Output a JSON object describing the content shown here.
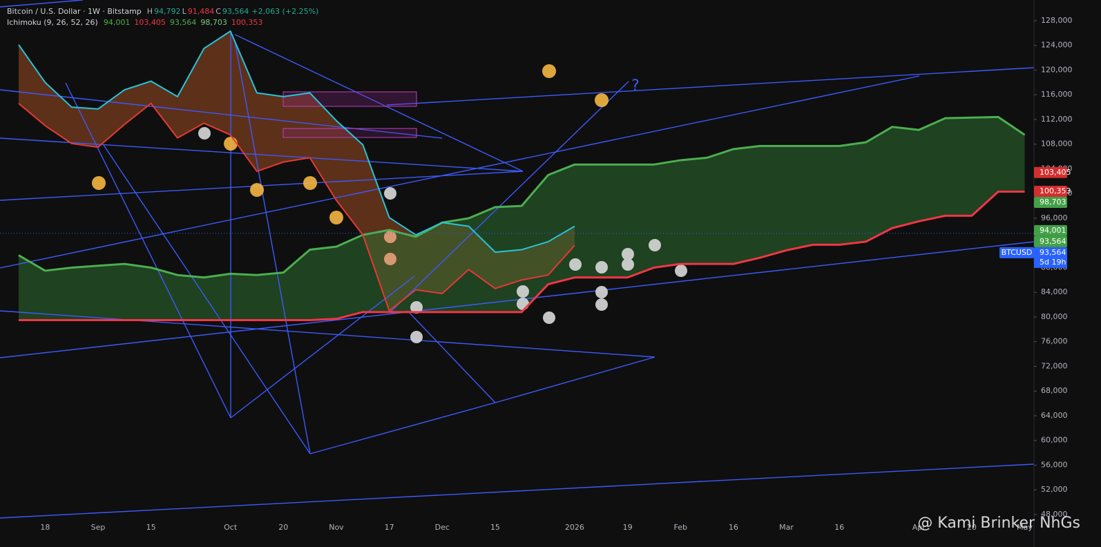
{
  "chart_data": {
    "type": "line",
    "header": {
      "symbol": "Bitcoin / U.S. Dollar · 1W · Bitstamp",
      "ohlc": [
        {
          "key": "H",
          "value": "94,792",
          "color": "#22ab94"
        },
        {
          "key": "L",
          "value": "91,484",
          "color": "#f23645"
        },
        {
          "key": "C",
          "value": "93,564",
          "color": "#22ab94"
        }
      ],
      "change": "+2,063 (+2.25%)",
      "indicator": "Ichimoku (9, 26, 52, 26)",
      "indicator_values": [
        {
          "text": "94,001",
          "color": "#4caf50"
        },
        {
          "text": "103,405",
          "color": "#f23645"
        },
        {
          "text": "93,564",
          "color": "#4caf50"
        },
        {
          "text": "98,703",
          "color": "#81c784"
        },
        {
          "text": "100,353",
          "color": "#f23645"
        }
      ]
    },
    "categories": [
      null,
      "18",
      null,
      "Sep",
      null,
      "15",
      null,
      null,
      "Oct",
      null,
      "20",
      null,
      "Nov",
      null,
      "17",
      null,
      "Dec",
      null,
      "15",
      null,
      null,
      "2026",
      null,
      "19",
      null,
      "Feb",
      null,
      "16",
      null,
      "Mar",
      null,
      "16",
      null,
      null,
      "Apr",
      null,
      "20",
      null,
      "May"
    ],
    "series": [
      {
        "color": "#4caf50",
        "values": [
          90000,
          87500,
          88000,
          88300,
          88600,
          88000,
          86800,
          86400,
          87000,
          86800,
          87200,
          90900,
          91400,
          93300,
          94100,
          93000,
          95300,
          96000,
          97800,
          98000,
          103000,
          104700,
          104700,
          104700,
          104700,
          105400,
          105800,
          107200,
          107700,
          107700,
          107700,
          107700,
          108300,
          110800,
          110300,
          112200,
          112300,
          112400,
          109500
        ]
      },
      {
        "color": "#f23645",
        "values": [
          79500,
          79500,
          79500,
          79500,
          79500,
          79500,
          79500,
          79500,
          79500,
          79500,
          79500,
          79500,
          79700,
          80800,
          80800,
          80800,
          80800,
          80800,
          80800,
          80800,
          85300,
          86400,
          86400,
          86400,
          88000,
          88600,
          88600,
          88600,
          89600,
          90800,
          91700,
          91700,
          92200,
          94400,
          95500,
          96400,
          96400,
          100300,
          100300
        ]
      },
      {
        "color": "#26c6da",
        "values": [
          124100,
          118000,
          114000,
          113700,
          116800,
          118200,
          115700,
          123500,
          126300,
          116300,
          115700,
          116300,
          111800,
          107900,
          96100,
          93300,
          95300,
          94700,
          90500,
          90900,
          92200,
          94700,
          null,
          null,
          null,
          null,
          null,
          null,
          null,
          null,
          null,
          null,
          null,
          null,
          null,
          null,
          null,
          null,
          null
        ]
      },
      {
        "color": "#e53935",
        "values": [
          114600,
          111000,
          108100,
          107500,
          111200,
          114600,
          109000,
          111400,
          109500,
          103600,
          105100,
          105800,
          98900,
          93300,
          81000,
          84400,
          83800,
          87700,
          84600,
          86000,
          86800,
          91600,
          null,
          null,
          null,
          null,
          null,
          null,
          null,
          null,
          null,
          null,
          null,
          null,
          null,
          null,
          null,
          null,
          null
        ]
      }
    ],
    "ylim": [
      47440,
      131350
    ],
    "yticks": [
      {
        "value": 48000,
        "label": "48,000"
      },
      {
        "value": 52000,
        "label": "52,000"
      },
      {
        "value": 56000,
        "label": "56,000"
      },
      {
        "value": 60000,
        "label": "60,000"
      },
      {
        "value": 64000,
        "label": "64,000"
      },
      {
        "value": 68000,
        "label": "68,000"
      },
      {
        "value": 72000,
        "label": "72,000"
      },
      {
        "value": 76000,
        "label": "76,000"
      },
      {
        "value": 80000,
        "label": "80,000"
      },
      {
        "value": 84000,
        "label": "84,000"
      },
      {
        "value": 88000,
        "label": "88,000"
      },
      {
        "value": 92000,
        "label": "92,000"
      },
      {
        "value": 96000,
        "label": "96,000"
      },
      {
        "value": 100000,
        "label": "100,000"
      },
      {
        "value": 104000,
        "label": "104,000"
      },
      {
        "value": 108000,
        "label": "108,000"
      },
      {
        "value": 112000,
        "label": "112,000"
      },
      {
        "value": 116000,
        "label": "116,000"
      },
      {
        "value": 120000,
        "label": "120,000"
      },
      {
        "value": 124000,
        "label": "124,000"
      },
      {
        "value": 128000,
        "label": "128,000"
      }
    ],
    "price_tags": [
      {
        "value": 103405,
        "label": "103,405",
        "color": "#d32f2f"
      },
      {
        "value": 100353,
        "label": "100,353",
        "color": "#d32f2f"
      },
      {
        "value": 98703,
        "label": "98,703",
        "color": "#43a047"
      },
      {
        "value": 94001,
        "label": "94,001",
        "color": "#43a047"
      },
      {
        "value": 93564,
        "label": "93,564",
        "color": "#43a047"
      },
      {
        "value": 93564,
        "label": "93,564",
        "color": "#2962ff",
        "name": "BTCUSD",
        "countdown": "5d 19h"
      }
    ],
    "annotations": [
      "?"
    ],
    "watermark": "@ Kami Brinker NhGs"
  }
}
